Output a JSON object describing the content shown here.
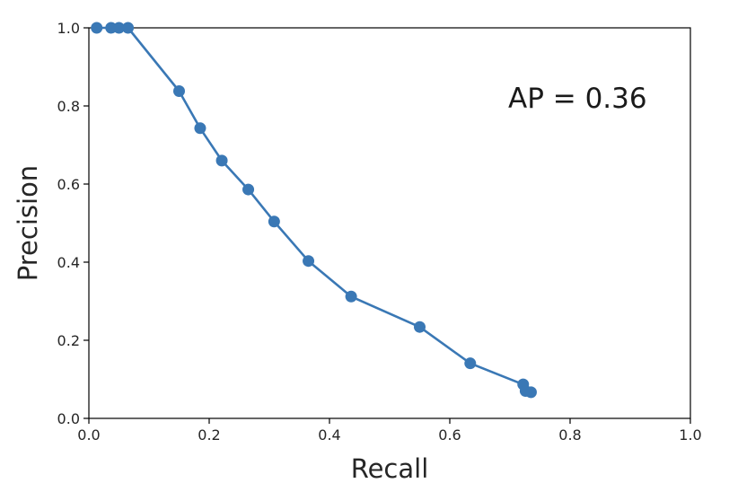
{
  "chart_data": {
    "type": "line",
    "xlabel": "Recall",
    "ylabel": "Precision",
    "xlim": [
      0.0,
      1.0
    ],
    "ylim": [
      0.0,
      1.0
    ],
    "xticks": [
      "0.0",
      "0.2",
      "0.4",
      "0.6",
      "0.8",
      "1.0"
    ],
    "yticks": [
      "0.0",
      "0.2",
      "0.4",
      "0.6",
      "0.8",
      "1.0"
    ],
    "grid": false,
    "annotation": "AP = 0.36",
    "series": [
      {
        "color": "#3a78b5",
        "markers": true,
        "x": [
          0.013,
          0.037,
          0.05,
          0.065,
          0.15,
          0.185,
          0.221,
          0.265,
          0.308,
          0.365,
          0.436,
          0.55,
          0.634,
          0.722,
          0.726,
          0.735
        ],
        "y": [
          1.0,
          1.0,
          1.0,
          1.0,
          0.838,
          0.743,
          0.66,
          0.586,
          0.504,
          0.403,
          0.312,
          0.234,
          0.141,
          0.087,
          0.07,
          0.067
        ]
      }
    ]
  }
}
